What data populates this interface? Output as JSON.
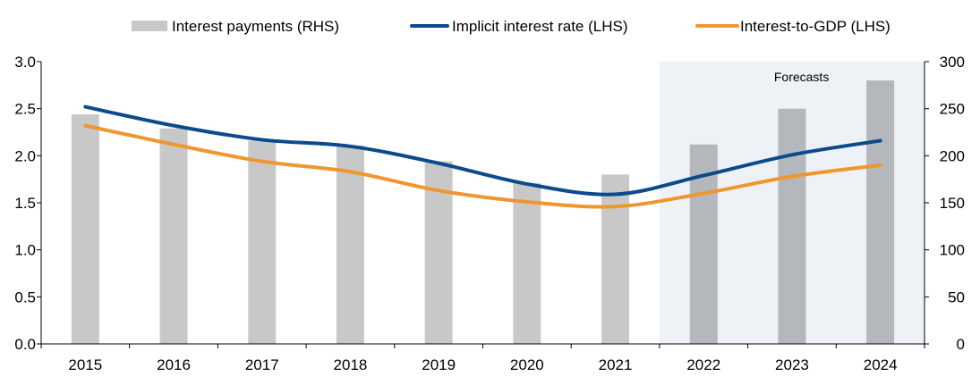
{
  "chart_data": {
    "type": "bar",
    "categories": [
      "2015",
      "2016",
      "2017",
      "2018",
      "2019",
      "2020",
      "2021",
      "2022",
      "2023",
      "2024"
    ],
    "series": [
      {
        "name": "Interest payments (RHS)",
        "kind": "bar",
        "axis": "right",
        "color": "#c8c8c8",
        "forecast_color": "#b4b8bc",
        "values": [
          244,
          229,
          216,
          211,
          194,
          171,
          180,
          212,
          250,
          280
        ]
      },
      {
        "name": "Implicit interest rate (LHS)",
        "kind": "line",
        "axis": "left",
        "color": "#0b4a8b",
        "values": [
          2.52,
          2.32,
          2.17,
          2.1,
          1.92,
          1.7,
          1.59,
          1.79,
          2.01,
          2.16
        ]
      },
      {
        "name": "Interest-to-GDP (LHS)",
        "kind": "line",
        "axis": "left",
        "color": "#f0962e",
        "values": [
          2.32,
          2.12,
          1.94,
          1.83,
          1.63,
          1.51,
          1.46,
          1.6,
          1.78,
          1.9
        ]
      }
    ],
    "y_left": {
      "min": 0,
      "max": 3.0,
      "ticks": [
        "0.0",
        "0.5",
        "1.0",
        "1.5",
        "2.0",
        "2.5",
        "3.0"
      ]
    },
    "y_right": {
      "min": 0,
      "max": 300,
      "ticks": [
        "0",
        "50",
        "100",
        "150",
        "200",
        "250",
        "300"
      ]
    },
    "forecast": {
      "label": "Forecasts",
      "from_category": "2022",
      "to_category": "2024",
      "shade_color": "#eef2f6"
    },
    "legend_position": "top",
    "grid": false
  }
}
